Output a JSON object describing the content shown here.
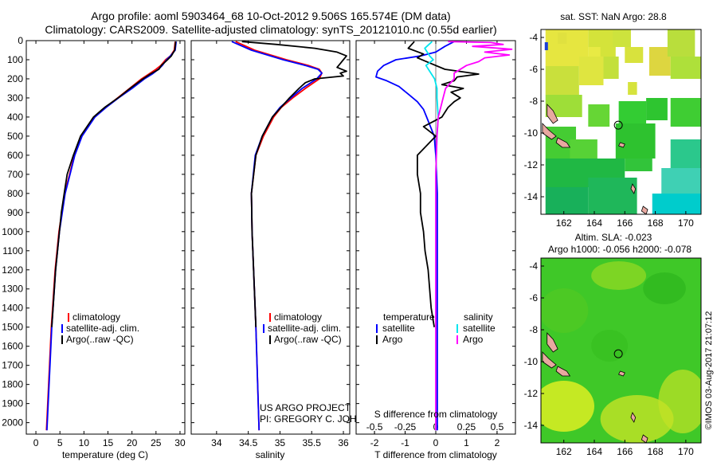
{
  "header": {
    "title_line1": "Argo profile: aoml 5903464_68 10-Oct-2012 9.506S 165.574E (DM data)",
    "title_line2": "Climatology: CARS2009. Satellite-adjusted climatology: synTS_20121010.nc (0.55d earlier)"
  },
  "colors": {
    "climatology": "#ff0000",
    "satellite": "#0000ff",
    "argo": "#000000",
    "salinity_satellite": "#00e5ee",
    "salinity_argo": "#ff00ff",
    "land": "#e8a8a0",
    "sst_warm": "#e6e640",
    "sst_mid": "#33cc33",
    "sst_cool": "#00cccc",
    "sla_field": "#44cc22",
    "sla_high": "#ddee22"
  },
  "credit": {
    "project_line1": "US ARGO PROJECT",
    "project_line2": "PI: GREGORY C. JOHNSON",
    "imos": "©IMOS 03-Aug-2017 21:07:12"
  },
  "chart_data": [
    {
      "id": "temperature",
      "type": "line",
      "xlabel": "temperature (deg C)",
      "ylabel": "",
      "xlim": [
        -2,
        31
      ],
      "ylim": [
        2060,
        0
      ],
      "xticks": [
        0,
        5,
        10,
        15,
        20,
        25,
        30
      ],
      "yticks": [
        0,
        100,
        200,
        300,
        400,
        500,
        600,
        700,
        800,
        900,
        1000,
        1100,
        1200,
        1300,
        1400,
        1500,
        1600,
        1700,
        1800,
        1900,
        2000
      ],
      "legend": {
        "position": "bottom-center",
        "entries": [
          "climatology",
          "satellite-adj. clim.",
          "Argo(..raw -QC)"
        ]
      },
      "series": [
        {
          "name": "climatology",
          "color_key": "climatology",
          "depth": [
            5,
            50,
            80,
            100,
            130,
            150,
            175,
            200,
            250,
            300,
            350,
            400,
            500,
            600,
            700,
            800,
            1000,
            1200,
            1500,
            2040
          ],
          "values": [
            29.0,
            28.8,
            28.0,
            27.0,
            26.0,
            25.0,
            23.5,
            22.0,
            19.5,
            17.0,
            14.5,
            12.2,
            9.5,
            8.0,
            7.0,
            6.0,
            4.8,
            4.0,
            3.2,
            2.2
          ]
        },
        {
          "name": "satellite-adj. clim.",
          "color_key": "satellite",
          "depth": [
            5,
            50,
            80,
            100,
            130,
            150,
            175,
            200,
            250,
            300,
            350,
            400,
            500,
            600,
            700,
            800,
            1000,
            1200,
            1500,
            2040
          ],
          "values": [
            29.2,
            29.0,
            28.0,
            27.2,
            26.3,
            25.5,
            24.2,
            22.6,
            20.0,
            17.2,
            14.6,
            12.3,
            9.6,
            8.1,
            7.1,
            6.1,
            4.9,
            4.1,
            3.3,
            2.3
          ]
        },
        {
          "name": "Argo(..raw -QC)",
          "color_key": "argo",
          "depth": [
            5,
            50,
            80,
            100,
            130,
            150,
            175,
            200,
            250,
            300,
            350,
            400,
            500,
            600,
            700,
            800,
            900,
            1000,
            1200,
            1500
          ],
          "values": [
            29.1,
            28.9,
            28.2,
            27.4,
            26.1,
            25.6,
            23.8,
            22.3,
            19.6,
            17.1,
            14.3,
            12.0,
            9.3,
            7.8,
            6.5,
            5.9,
            5.3,
            4.9,
            4.1,
            3.3
          ]
        }
      ]
    },
    {
      "id": "salinity",
      "type": "line",
      "xlabel": "salinity",
      "ylabel": "",
      "xlim": [
        33.6,
        36.1
      ],
      "ylim": [
        2060,
        0
      ],
      "xticks": [
        34,
        34.5,
        35,
        35.5,
        36
      ],
      "legend": {
        "position": "bottom-center",
        "entries": [
          "climatology",
          "satellite-adj. clim.",
          "Argo(..raw -QC)"
        ]
      },
      "series": [
        {
          "name": "climatology",
          "color_key": "climatology",
          "depth": [
            5,
            50,
            100,
            130,
            150,
            170,
            200,
            250,
            300,
            350,
            400,
            500,
            600,
            800,
            1000,
            1500,
            2040
          ],
          "values": [
            34.3,
            34.6,
            35.1,
            35.45,
            35.62,
            35.66,
            35.62,
            35.4,
            35.2,
            35.02,
            34.9,
            34.74,
            34.62,
            34.55,
            34.56,
            34.62,
            34.67
          ]
        },
        {
          "name": "satellite-adj. clim.",
          "color_key": "satellite",
          "depth": [
            5,
            50,
            100,
            130,
            150,
            170,
            200,
            250,
            300,
            350,
            400,
            500,
            600,
            800,
            1000,
            1500,
            2040
          ],
          "values": [
            34.24,
            34.55,
            35.05,
            35.4,
            35.6,
            35.66,
            35.58,
            35.35,
            35.17,
            35.0,
            34.88,
            34.72,
            34.61,
            34.55,
            34.56,
            34.62,
            34.67
          ]
        },
        {
          "name": "Argo(..raw -QC)",
          "color_key": "argo",
          "depth": [
            5,
            20,
            40,
            60,
            80,
            100,
            120,
            140,
            160,
            170,
            185,
            200,
            220,
            250,
            300,
            400,
            500,
            600,
            800,
            1000,
            1500
          ],
          "values": [
            34.4,
            34.95,
            35.55,
            35.9,
            36.05,
            36.0,
            35.95,
            35.9,
            36.05,
            35.95,
            36.0,
            35.55,
            35.4,
            35.3,
            35.15,
            34.88,
            34.72,
            34.62,
            34.55,
            34.56,
            34.62
          ]
        }
      ]
    },
    {
      "id": "difference",
      "type": "line",
      "xlabel": "T difference from climatology",
      "xlabel_top": "S difference from climatology",
      "xlim": [
        -2.6,
        2.6
      ],
      "ylim": [
        2060,
        0
      ],
      "xticks": [
        -2,
        -1,
        0,
        1,
        2
      ],
      "xticks_s": [
        -0.5,
        -0.25,
        0,
        0.25,
        0.5
      ],
      "xticks_s_labels": [
        "-0.5",
        "-0.25",
        "0",
        "0.25",
        "0.5"
      ],
      "legend": {
        "position": "bottom-center",
        "temperature_title": "temperature",
        "salinity_title": "salinity",
        "entries_temperature": [
          "satellite",
          "Argo"
        ],
        "entries_salinity": [
          "satellite",
          "Argo"
        ]
      },
      "series": [
        {
          "name": "temperature satellite",
          "color_key": "satellite",
          "unit": "T",
          "depth": [
            5,
            30,
            60,
            80,
            100,
            130,
            160,
            190,
            210,
            240,
            280,
            320,
            360,
            400,
            500,
            600,
            800,
            1000,
            1500,
            2040
          ],
          "values": [
            0.6,
            0.3,
            0.0,
            -0.5,
            -1.3,
            -1.7,
            -1.9,
            -1.95,
            -1.6,
            -1.2,
            -0.9,
            -0.6,
            -0.4,
            -0.3,
            -0.05,
            0.0,
            0.05,
            0.05,
            0.05,
            0.05
          ]
        },
        {
          "name": "temperature Argo",
          "color_key": "argo",
          "unit": "T",
          "depth": [
            5,
            40,
            70,
            90,
            110,
            150,
            175,
            190,
            210,
            230,
            250,
            270,
            300,
            320,
            350,
            400,
            450,
            500,
            600,
            700,
            800,
            900,
            1000,
            1100,
            1200,
            1300,
            1400,
            1500
          ],
          "values": [
            -0.7,
            -0.9,
            -0.4,
            -0.6,
            -0.3,
            0.3,
            1.4,
            0.7,
            0.6,
            0.2,
            0.9,
            0.5,
            0.8,
            0.6,
            0.4,
            0.2,
            -0.4,
            0.0,
            -0.6,
            -0.6,
            -0.5,
            -0.5,
            -0.4,
            -0.35,
            -0.25,
            -0.2,
            -0.15,
            -0.05
          ]
        },
        {
          "name": "salinity satellite",
          "color_key": "salinity_satellite",
          "unit": "S",
          "depth": [
            5,
            40,
            80,
            100,
            130,
            160,
            200,
            250,
            300,
            400,
            500,
            700,
            1000,
            1500,
            2040
          ],
          "values": [
            -0.03,
            -0.09,
            -0.05,
            -0.02,
            -0.08,
            -0.05,
            -0.01,
            0.01,
            0.01,
            0.02,
            0.01,
            0.0,
            0.0,
            0.0,
            0.0
          ]
        },
        {
          "name": "salinity Argo",
          "color_key": "salinity_argo",
          "unit": "S",
          "depth": [
            5,
            10,
            20,
            30,
            45,
            60,
            75,
            90,
            110,
            130,
            170,
            200,
            250,
            300,
            350,
            400,
            500,
            700,
            1000,
            1500,
            2040
          ],
          "values": [
            0.1,
            0.45,
            0.55,
            0.3,
            0.62,
            0.4,
            0.6,
            0.4,
            0.35,
            0.25,
            0.15,
            0.15,
            0.08,
            0.06,
            0.04,
            0.02,
            0.01,
            0.0,
            0.0,
            0.0,
            0.0
          ]
        }
      ]
    },
    {
      "id": "sst_map",
      "type": "heatmap",
      "title": "sat. SST: NaN Argo: 28.8",
      "xlim": [
        160.5,
        171
      ],
      "ylim": [
        -15.1,
        -3.5
      ],
      "xticks": [
        162,
        164,
        166,
        168,
        170
      ],
      "yticks": [
        -14,
        -12,
        -10,
        -8,
        -6,
        -4
      ],
      "argo_position": {
        "lon": 165.574,
        "lat": -9.506
      }
    },
    {
      "id": "sla_map",
      "type": "heatmap",
      "title": "Altim. SLA: -0.023",
      "subtitle": "Argo h1000: -0.056 h2000: -0.078",
      "xlim": [
        160.5,
        171
      ],
      "ylim": [
        -15.1,
        -3.5
      ],
      "xticks": [
        162,
        164,
        166,
        168,
        170
      ],
      "yticks": [
        -14,
        -12,
        -10,
        -8,
        -6,
        -4
      ],
      "argo_position": {
        "lon": 165.574,
        "lat": -9.506
      }
    }
  ]
}
